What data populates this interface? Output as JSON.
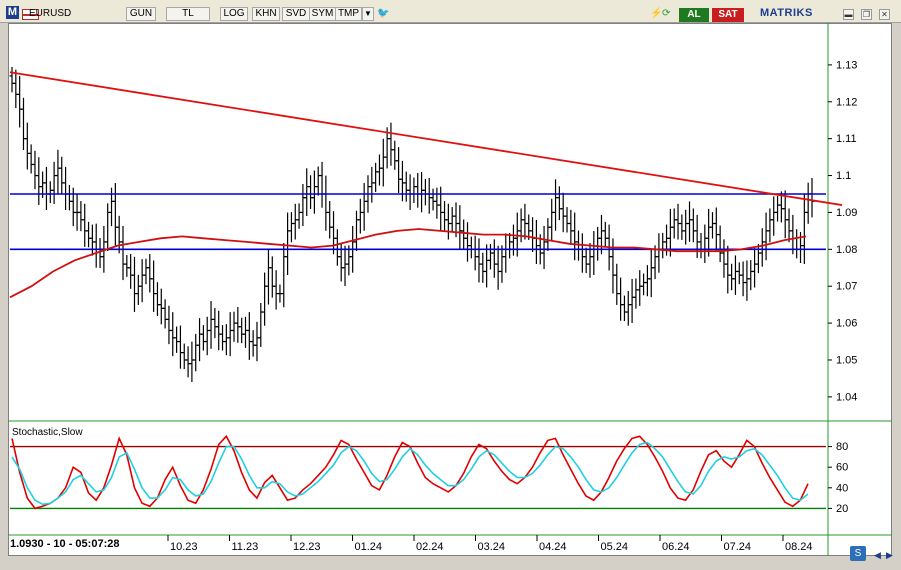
{
  "toolbar": {
    "logo": "M",
    "symbol": "EURUSD",
    "buttons": [
      "GUN",
      "TL",
      "LOG",
      "KHN",
      "SVD",
      "SYM",
      "TMP"
    ],
    "al_label": "AL",
    "sat_label": "SAT",
    "brand": "MATRIKS"
  },
  "status": {
    "readout": "1.0930 - 10 - 05:07:28"
  },
  "colors": {
    "trendline": "#e01010",
    "support_resistance": "#0000d0",
    "moving_average": "#d01010",
    "stoch_k": "#e00000",
    "stoch_d": "#20d0e0",
    "overbought": "#a00000",
    "oversold": "#008000",
    "bars": "#000000"
  },
  "chart_data": [
    {
      "type": "ohlc",
      "x_ticks": [
        "10.23",
        "11.23",
        "12.23",
        "01.24",
        "02.24",
        "03.24",
        "04.24",
        "05.24",
        "06.24",
        "07.24",
        "08.24"
      ],
      "y_ticks": [
        1.04,
        1.05,
        1.06,
        1.07,
        1.08,
        1.09,
        1.1,
        1.11,
        1.12,
        1.13
      ],
      "ylim": [
        1.034,
        1.14
      ],
      "horizontal_levels": [
        1.095,
        1.08
      ],
      "trendline": {
        "start": [
          0,
          1.128
        ],
        "end": [
          210,
          1.092
        ]
      },
      "series_close": [
        1.125,
        1.122,
        1.118,
        1.11,
        1.106,
        1.103,
        1.1,
        1.097,
        1.098,
        1.095,
        1.096,
        1.1,
        1.102,
        1.098,
        1.095,
        1.093,
        1.09,
        1.09,
        1.088,
        1.085,
        1.083,
        1.082,
        1.08,
        1.078,
        1.082,
        1.09,
        1.093,
        1.086,
        1.082,
        1.076,
        1.075,
        1.073,
        1.068,
        1.07,
        1.073,
        1.075,
        1.072,
        1.068,
        1.065,
        1.064,
        1.061,
        1.058,
        1.056,
        1.055,
        1.052,
        1.05,
        1.049,
        1.05,
        1.054,
        1.057,
        1.055,
        1.058,
        1.061,
        1.059,
        1.057,
        1.055,
        1.056,
        1.058,
        1.06,
        1.059,
        1.057,
        1.058,
        1.055,
        1.054,
        1.056,
        1.063,
        1.07,
        1.075,
        1.07,
        1.068,
        1.068,
        1.078,
        1.085,
        1.087,
        1.088,
        1.09,
        1.094,
        1.097,
        1.094,
        1.097,
        1.1,
        1.095,
        1.09,
        1.086,
        1.083,
        1.078,
        1.075,
        1.076,
        1.078,
        1.082,
        1.088,
        1.09,
        1.093,
        1.097,
        1.098,
        1.101,
        1.102,
        1.105,
        1.11,
        1.107,
        1.104,
        1.099,
        1.098,
        1.096,
        1.095,
        1.097,
        1.095,
        1.096,
        1.095,
        1.094,
        1.093,
        1.092,
        1.09,
        1.088,
        1.087,
        1.089,
        1.087,
        1.085,
        1.083,
        1.081,
        1.08,
        1.078,
        1.076,
        1.074,
        1.077,
        1.079,
        1.076,
        1.074,
        1.078,
        1.08,
        1.082,
        1.083,
        1.085,
        1.088,
        1.087,
        1.085,
        1.083,
        1.081,
        1.079,
        1.082,
        1.086,
        1.09,
        1.094,
        1.091,
        1.089,
        1.087,
        1.085,
        1.082,
        1.08,
        1.078,
        1.076,
        1.078,
        1.08,
        1.083,
        1.085,
        1.083,
        1.078,
        1.073,
        1.068,
        1.065,
        1.063,
        1.065,
        1.067,
        1.069,
        1.07,
        1.071,
        1.072,
        1.075,
        1.078,
        1.08,
        1.082,
        1.083,
        1.086,
        1.088,
        1.087,
        1.085,
        1.087,
        1.088,
        1.085,
        1.082,
        1.08,
        1.083,
        1.086,
        1.087,
        1.084,
        1.079,
        1.076,
        1.073,
        1.072,
        1.074,
        1.073,
        1.071,
        1.072,
        1.074,
        1.076,
        1.079,
        1.082,
        1.085,
        1.088,
        1.09,
        1.092,
        1.091,
        1.088,
        1.085,
        1.083,
        1.08,
        1.081,
        1.09,
        1.095,
        1.093
      ],
      "series_ma": [
        1.067,
        1.07,
        1.074,
        1.077,
        1.079,
        1.081,
        1.082,
        1.083,
        1.0835,
        1.083,
        1.0825,
        1.082,
        1.0815,
        1.081,
        1.0805,
        1.081,
        1.0825,
        1.084,
        1.085,
        1.0855,
        1.085,
        1.0845,
        1.084,
        1.084,
        1.0835,
        1.0825,
        1.0815,
        1.081,
        1.0805,
        1.0805,
        1.08,
        1.0795,
        1.0795,
        1.0795,
        1.08,
        1.081,
        1.0825,
        1.0835
      ],
      "indicator": {
        "name": "Stochastic,Slow",
        "ylim": [
          0,
          100
        ],
        "y_ticks": [
          20,
          40,
          60,
          80
        ],
        "overbought": 80,
        "oversold": 20,
        "k": [
          88,
          55,
          30,
          20,
          22,
          25,
          30,
          40,
          60,
          55,
          35,
          28,
          40,
          62,
          88,
          72,
          40,
          25,
          22,
          30,
          48,
          60,
          42,
          28,
          25,
          38,
          58,
          82,
          90,
          76,
          55,
          38,
          30,
          45,
          52,
          40,
          28,
          30,
          38,
          44,
          52,
          60,
          72,
          86,
          82,
          68,
          55,
          42,
          38,
          52,
          70,
          84,
          80,
          64,
          50,
          44,
          40,
          36,
          42,
          54,
          70,
          82,
          78,
          66,
          56,
          48,
          44,
          50,
          60,
          74,
          86,
          88,
          72,
          58,
          44,
          32,
          28,
          36,
          50,
          66,
          78,
          88,
          90,
          82,
          70,
          56,
          40,
          30,
          28,
          38,
          56,
          72,
          76,
          66,
          60,
          72,
          86,
          80,
          64,
          50,
          38,
          26,
          22,
          28,
          44
        ],
        "d": [
          70,
          58,
          40,
          28,
          24,
          25,
          30,
          36,
          48,
          52,
          44,
          36,
          38,
          50,
          70,
          74,
          58,
          40,
          30,
          30,
          38,
          50,
          48,
          38,
          32,
          34,
          46,
          64,
          80,
          80,
          68,
          52,
          40,
          40,
          46,
          44,
          36,
          32,
          34,
          40,
          46,
          54,
          62,
          74,
          80,
          76,
          66,
          54,
          46,
          48,
          58,
          70,
          78,
          72,
          62,
          54,
          48,
          42,
          42,
          48,
          58,
          70,
          76,
          72,
          64,
          56,
          50,
          50,
          54,
          62,
          72,
          80,
          78,
          70,
          60,
          48,
          38,
          36,
          40,
          50,
          62,
          74,
          82,
          84,
          78,
          70,
          58,
          46,
          36,
          34,
          42,
          56,
          66,
          70,
          68,
          70,
          76,
          78,
          72,
          62,
          52,
          40,
          30,
          28,
          34
        ]
      }
    }
  ]
}
